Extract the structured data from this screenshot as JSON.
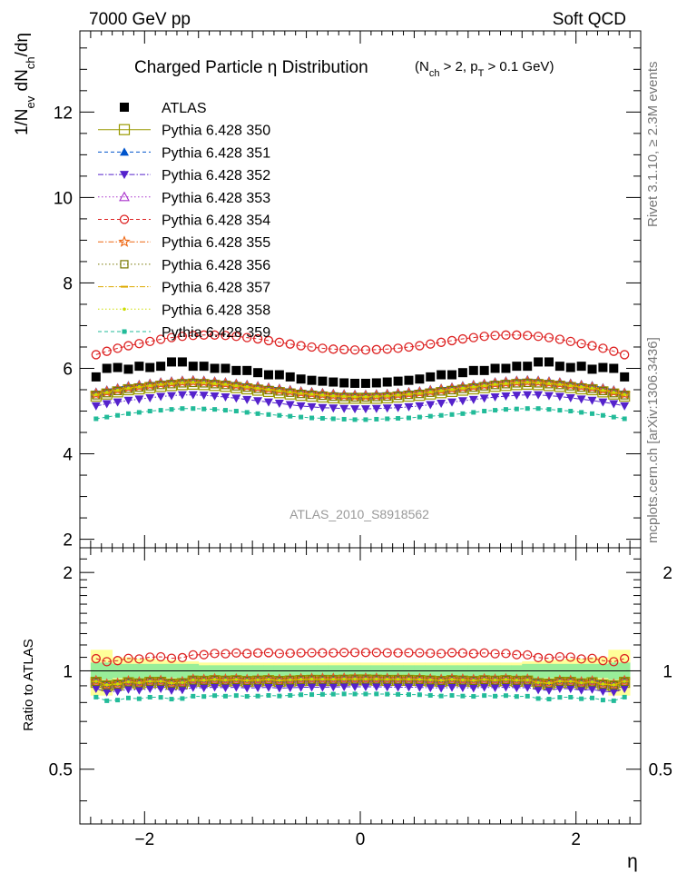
{
  "header": {
    "left_label": "7000 GeV pp",
    "right_label": "Soft QCD"
  },
  "side_labels": {
    "rivet": "Rivet 3.1.10, ≥ 2.3M events",
    "mcplots": "mcplots.cern.ch [arXiv:1306.3436]"
  },
  "chart_data": {
    "type": "scatter",
    "title": "Charged Particle  η Distribution",
    "title_cut": "(N_ch > 2, p_T > 0.1 GeV)",
    "analysis_id": "ATLAS_2010_S8918562",
    "xlabel": "η",
    "ylabel": "1/N_ev dN_ch/dη",
    "ratio_ylabel": "Ratio to ATLAS",
    "xlim": [
      -2.6,
      2.6
    ],
    "ylim": [
      1.8,
      13.9
    ],
    "ratio_ylim": [
      0.34,
      2.38
    ],
    "ratio_scale": "log",
    "x_ticks": [
      -2,
      0,
      2
    ],
    "y_ticks": [
      2,
      4,
      6,
      8,
      10,
      12
    ],
    "ratio_ticks": [
      0.5,
      1,
      2
    ],
    "legend_position": "top-left",
    "x": [
      -2.45,
      -2.35,
      -2.25,
      -2.15,
      -2.05,
      -1.95,
      -1.85,
      -1.75,
      -1.65,
      -1.55,
      -1.45,
      -1.35,
      -1.25,
      -1.15,
      -1.05,
      -0.95,
      -0.85,
      -0.75,
      -0.65,
      -0.55,
      -0.45,
      -0.35,
      -0.25,
      -0.15,
      -0.05,
      0.05,
      0.15,
      0.25,
      0.35,
      0.45,
      0.55,
      0.65,
      0.75,
      0.85,
      0.95,
      1.05,
      1.15,
      1.25,
      1.35,
      1.45,
      1.55,
      1.65,
      1.75,
      1.85,
      1.95,
      2.05,
      2.15,
      2.25,
      2.35,
      2.45
    ],
    "series": [
      {
        "name": "ATLAS",
        "color": "#000000",
        "marker": "square-filled",
        "values": [
          5.8,
          6.0,
          6.02,
          5.98,
          6.05,
          6.02,
          6.05,
          6.15,
          6.15,
          6.05,
          6.05,
          6.0,
          6.0,
          5.95,
          5.95,
          5.9,
          5.85,
          5.85,
          5.8,
          5.75,
          5.72,
          5.7,
          5.68,
          5.66,
          5.65,
          5.65,
          5.66,
          5.68,
          5.7,
          5.72,
          5.75,
          5.8,
          5.85,
          5.85,
          5.9,
          5.95,
          5.95,
          6.0,
          6.0,
          6.05,
          6.05,
          6.15,
          6.15,
          6.05,
          6.02,
          6.05,
          5.98,
          6.02,
          6.0,
          5.8
        ]
      },
      {
        "name": "Pythia 6.428 350",
        "color": "#999900",
        "marker": "square-open-large",
        "line": "solid",
        "values": [
          5.35,
          5.4,
          5.45,
          5.5,
          5.52,
          5.55,
          5.58,
          5.6,
          5.62,
          5.63,
          5.62,
          5.6,
          5.58,
          5.55,
          5.52,
          5.49,
          5.46,
          5.43,
          5.4,
          5.37,
          5.35,
          5.33,
          5.31,
          5.3,
          5.3,
          5.3,
          5.3,
          5.31,
          5.33,
          5.35,
          5.37,
          5.4,
          5.43,
          5.46,
          5.49,
          5.52,
          5.55,
          5.58,
          5.6,
          5.62,
          5.63,
          5.62,
          5.6,
          5.58,
          5.55,
          5.52,
          5.5,
          5.45,
          5.4,
          5.35
        ]
      },
      {
        "name": "Pythia 6.428 351",
        "color": "#0055cc",
        "marker": "triangle-up-filled",
        "line": "dashed",
        "values": [
          5.45,
          5.5,
          5.55,
          5.6,
          5.63,
          5.66,
          5.69,
          5.71,
          5.73,
          5.74,
          5.73,
          5.71,
          5.69,
          5.66,
          5.63,
          5.6,
          5.57,
          5.54,
          5.51,
          5.48,
          5.46,
          5.44,
          5.42,
          5.41,
          5.4,
          5.4,
          5.41,
          5.42,
          5.44,
          5.46,
          5.48,
          5.51,
          5.54,
          5.57,
          5.6,
          5.63,
          5.66,
          5.69,
          5.71,
          5.73,
          5.74,
          5.73,
          5.71,
          5.69,
          5.66,
          5.63,
          5.6,
          5.55,
          5.5,
          5.45
        ]
      },
      {
        "name": "Pythia 6.428 352",
        "color": "#5522cc",
        "marker": "triangle-down-filled",
        "line": "dashdot",
        "values": [
          5.12,
          5.17,
          5.21,
          5.25,
          5.28,
          5.31,
          5.34,
          5.36,
          5.38,
          5.38,
          5.37,
          5.35,
          5.33,
          5.3,
          5.27,
          5.24,
          5.21,
          5.18,
          5.15,
          5.12,
          5.1,
          5.08,
          5.07,
          5.06,
          5.05,
          5.05,
          5.06,
          5.07,
          5.08,
          5.1,
          5.12,
          5.15,
          5.18,
          5.21,
          5.24,
          5.27,
          5.3,
          5.33,
          5.35,
          5.37,
          5.38,
          5.38,
          5.36,
          5.34,
          5.31,
          5.28,
          5.25,
          5.21,
          5.17,
          5.12
        ]
      },
      {
        "name": "Pythia 6.428 353",
        "color": "#aa33cc",
        "marker": "triangle-up-open",
        "line": "dotted",
        "values": [
          5.42,
          5.47,
          5.52,
          5.57,
          5.6,
          5.63,
          5.66,
          5.68,
          5.7,
          5.71,
          5.7,
          5.68,
          5.66,
          5.63,
          5.6,
          5.57,
          5.54,
          5.51,
          5.48,
          5.45,
          5.43,
          5.41,
          5.39,
          5.38,
          5.37,
          5.37,
          5.38,
          5.39,
          5.41,
          5.43,
          5.45,
          5.48,
          5.51,
          5.54,
          5.57,
          5.6,
          5.63,
          5.66,
          5.68,
          5.7,
          5.71,
          5.7,
          5.68,
          5.66,
          5.63,
          5.6,
          5.57,
          5.52,
          5.47,
          5.42
        ]
      },
      {
        "name": "Pythia 6.428 354",
        "color": "#dd2222",
        "marker": "circle-open",
        "line": "dashed",
        "values": [
          6.32,
          6.4,
          6.47,
          6.53,
          6.58,
          6.63,
          6.68,
          6.72,
          6.75,
          6.77,
          6.78,
          6.78,
          6.77,
          6.75,
          6.72,
          6.69,
          6.65,
          6.61,
          6.57,
          6.53,
          6.5,
          6.47,
          6.45,
          6.44,
          6.43,
          6.43,
          6.44,
          6.45,
          6.47,
          6.5,
          6.53,
          6.57,
          6.61,
          6.65,
          6.69,
          6.72,
          6.75,
          6.77,
          6.78,
          6.78,
          6.77,
          6.75,
          6.72,
          6.68,
          6.63,
          6.58,
          6.53,
          6.47,
          6.4,
          6.32
        ]
      },
      {
        "name": "Pythia 6.428 355",
        "color": "#ee6611",
        "marker": "star-open",
        "line": "dashdot",
        "values": [
          5.4,
          5.45,
          5.5,
          5.55,
          5.58,
          5.61,
          5.64,
          5.66,
          5.68,
          5.69,
          5.68,
          5.66,
          5.64,
          5.61,
          5.58,
          5.55,
          5.52,
          5.49,
          5.46,
          5.43,
          5.41,
          5.39,
          5.37,
          5.36,
          5.35,
          5.35,
          5.36,
          5.37,
          5.39,
          5.41,
          5.43,
          5.46,
          5.49,
          5.52,
          5.55,
          5.58,
          5.61,
          5.64,
          5.66,
          5.68,
          5.69,
          5.68,
          5.66,
          5.64,
          5.61,
          5.58,
          5.55,
          5.5,
          5.45,
          5.4
        ]
      },
      {
        "name": "Pythia 6.428 356",
        "color": "#777700",
        "marker": "square-open",
        "line": "dotted",
        "values": [
          5.37,
          5.42,
          5.47,
          5.52,
          5.55,
          5.58,
          5.61,
          5.63,
          5.65,
          5.66,
          5.65,
          5.63,
          5.61,
          5.58,
          5.55,
          5.52,
          5.49,
          5.46,
          5.43,
          5.4,
          5.38,
          5.36,
          5.34,
          5.33,
          5.32,
          5.32,
          5.33,
          5.34,
          5.36,
          5.38,
          5.4,
          5.43,
          5.46,
          5.49,
          5.52,
          5.55,
          5.58,
          5.61,
          5.63,
          5.65,
          5.66,
          5.65,
          5.63,
          5.61,
          5.58,
          5.55,
          5.52,
          5.47,
          5.42,
          5.37
        ]
      },
      {
        "name": "Pythia 6.428 357",
        "color": "#ddaa00",
        "marker": "dash",
        "line": "dashdot",
        "values": [
          5.38,
          5.43,
          5.48,
          5.53,
          5.56,
          5.59,
          5.62,
          5.64,
          5.66,
          5.67,
          5.66,
          5.64,
          5.62,
          5.59,
          5.56,
          5.53,
          5.5,
          5.47,
          5.44,
          5.41,
          5.39,
          5.37,
          5.35,
          5.34,
          5.33,
          5.33,
          5.34,
          5.35,
          5.37,
          5.39,
          5.41,
          5.44,
          5.47,
          5.5,
          5.53,
          5.56,
          5.59,
          5.62,
          5.64,
          5.66,
          5.67,
          5.66,
          5.64,
          5.62,
          5.59,
          5.56,
          5.53,
          5.48,
          5.43,
          5.38
        ]
      },
      {
        "name": "Pythia 6.428 358",
        "color": "#ccdd00",
        "marker": "dot",
        "line": "dotted",
        "values": [
          5.39,
          5.44,
          5.49,
          5.54,
          5.57,
          5.6,
          5.63,
          5.65,
          5.67,
          5.68,
          5.67,
          5.65,
          5.63,
          5.6,
          5.57,
          5.54,
          5.51,
          5.48,
          5.45,
          5.42,
          5.4,
          5.38,
          5.36,
          5.35,
          5.34,
          5.34,
          5.35,
          5.36,
          5.38,
          5.4,
          5.42,
          5.45,
          5.48,
          5.51,
          5.54,
          5.57,
          5.6,
          5.63,
          5.65,
          5.67,
          5.68,
          5.67,
          5.65,
          5.63,
          5.6,
          5.57,
          5.54,
          5.49,
          5.44,
          5.39
        ]
      },
      {
        "name": "Pythia 6.428 359",
        "color": "#22bb99",
        "marker": "square-small-filled",
        "line": "dashed",
        "values": [
          4.82,
          4.86,
          4.9,
          4.94,
          4.97,
          5.0,
          5.02,
          5.04,
          5.06,
          5.06,
          5.05,
          5.04,
          5.02,
          5.0,
          4.97,
          4.94,
          4.92,
          4.9,
          4.88,
          4.86,
          4.84,
          4.83,
          4.82,
          4.81,
          4.8,
          4.8,
          4.81,
          4.82,
          4.83,
          4.84,
          4.86,
          4.88,
          4.9,
          4.92,
          4.94,
          4.97,
          5.0,
          5.02,
          5.04,
          5.05,
          5.06,
          5.06,
          5.04,
          5.02,
          5.0,
          4.97,
          4.94,
          4.9,
          4.86,
          4.82
        ]
      }
    ],
    "ratio_bands": {
      "stat": [
        0.06,
        0.06,
        0.05,
        0.05,
        0.05,
        0.05,
        0.05,
        0.05,
        0.05,
        0.05,
        0.04,
        0.04,
        0.04,
        0.04,
        0.04,
        0.04,
        0.04,
        0.04,
        0.04,
        0.04,
        0.04,
        0.04,
        0.04,
        0.04,
        0.04,
        0.04,
        0.04,
        0.04,
        0.04,
        0.04,
        0.04,
        0.04,
        0.04,
        0.04,
        0.04,
        0.04,
        0.04,
        0.04,
        0.04,
        0.04,
        0.05,
        0.05,
        0.05,
        0.05,
        0.05,
        0.05,
        0.05,
        0.05,
        0.06,
        0.06
      ],
      "total": [
        0.16,
        0.16,
        0.1,
        0.1,
        0.09,
        0.09,
        0.08,
        0.08,
        0.07,
        0.07,
        0.06,
        0.06,
        0.06,
        0.06,
        0.06,
        0.06,
        0.06,
        0.06,
        0.06,
        0.06,
        0.06,
        0.06,
        0.06,
        0.06,
        0.06,
        0.06,
        0.06,
        0.06,
        0.06,
        0.06,
        0.06,
        0.06,
        0.06,
        0.06,
        0.06,
        0.06,
        0.06,
        0.06,
        0.06,
        0.06,
        0.07,
        0.07,
        0.08,
        0.08,
        0.09,
        0.09,
        0.1,
        0.1,
        0.16,
        0.16
      ]
    }
  }
}
